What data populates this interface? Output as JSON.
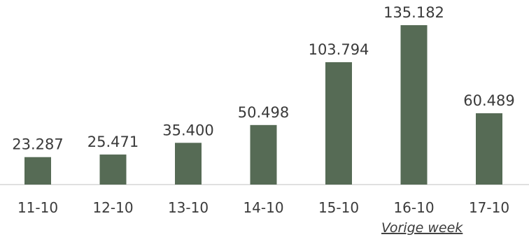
{
  "chart_data": {
    "type": "bar",
    "categories": [
      "11-10",
      "12-10",
      "13-10",
      "14-10",
      "15-10",
      "16-10",
      "17-10"
    ],
    "values": [
      23287,
      25471,
      35400,
      50498,
      103794,
      135182,
      60489
    ],
    "value_labels": [
      "23.287",
      "25.471",
      "35.400",
      "50.498",
      "103.794",
      "135.182",
      "60.489"
    ],
    "annotation": "Vorige week",
    "bar_color": "#566b55",
    "ylim": [
      0,
      135182
    ],
    "grid": false
  }
}
